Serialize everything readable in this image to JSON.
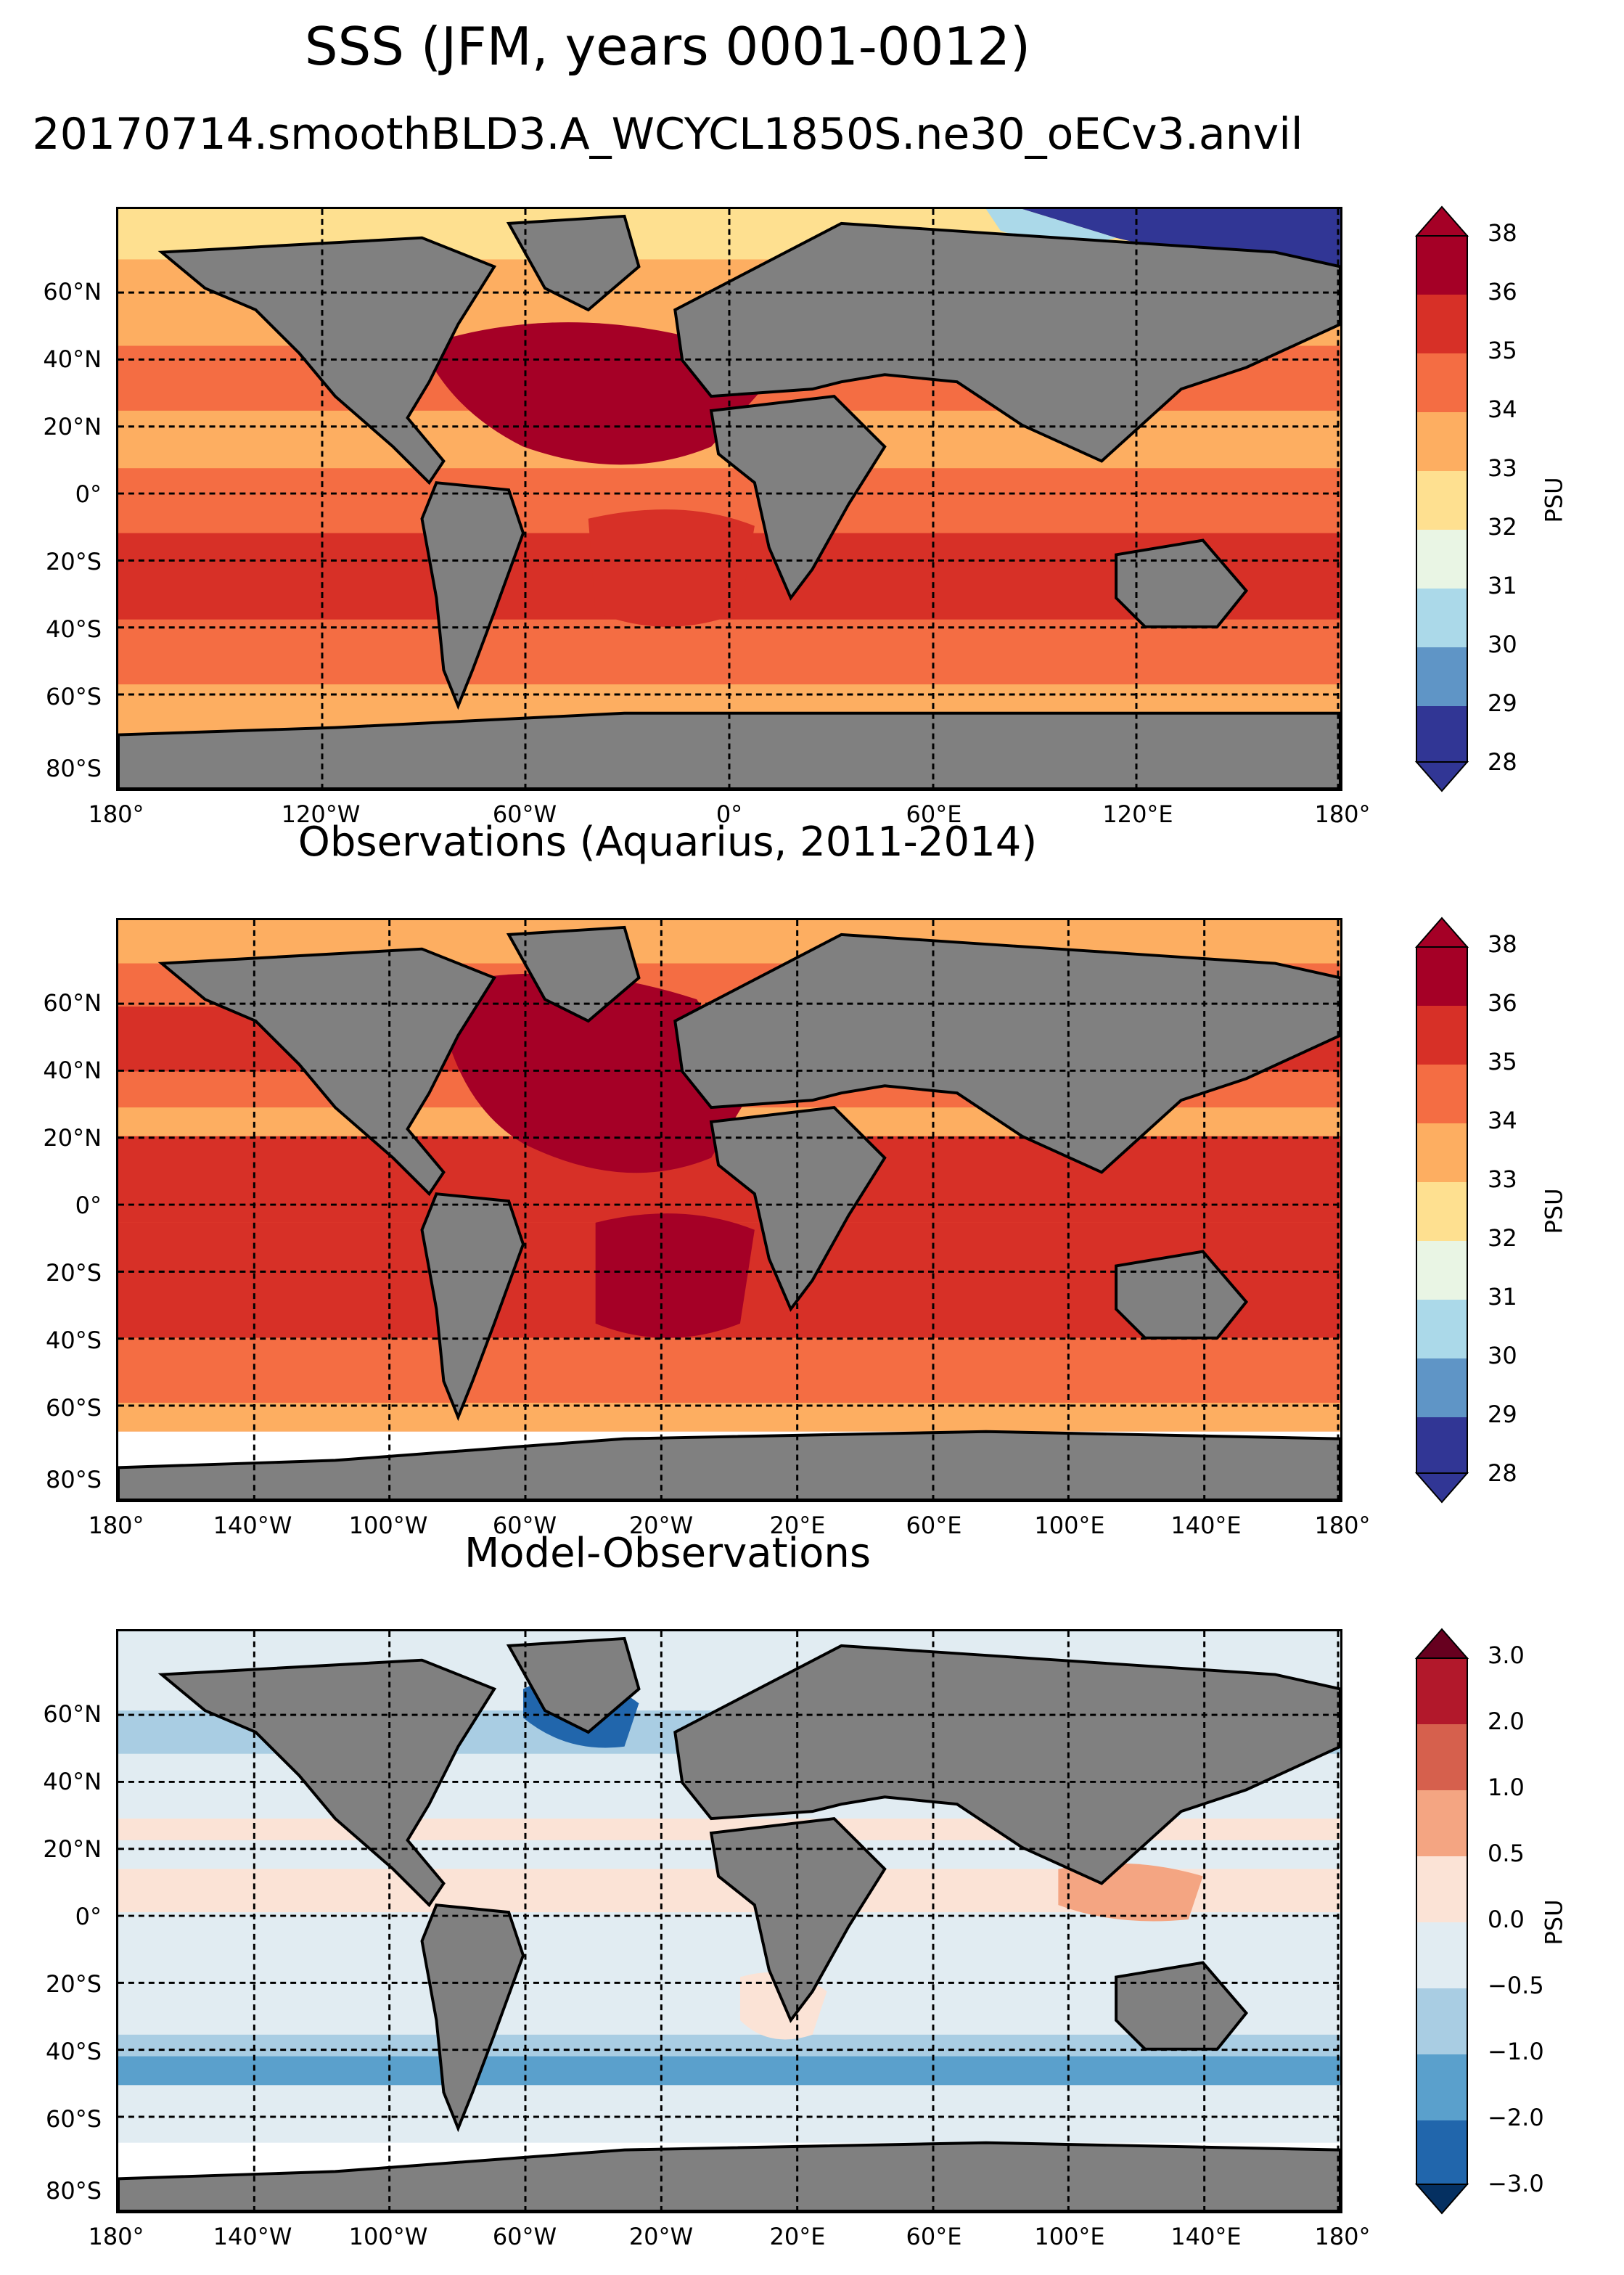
{
  "figure": {
    "title": "SSS (JFM, years 0001-0012)",
    "subtitle": "20170714.smoothBLD3.A_WCYCL1850S.ne30_oECv3.anvil"
  },
  "lat_ticks": [
    "60°N",
    "40°N",
    "20°N",
    "0°",
    "20°S",
    "40°S",
    "60°S",
    "80°S"
  ],
  "panels": [
    {
      "id": "model",
      "title": "",
      "lon_ticks": [
        "180°",
        "120°W",
        "60°W",
        "0°",
        "60°E",
        "120°E",
        "180°"
      ],
      "colorbar": {
        "label": "PSU",
        "ticks": [
          "38",
          "36",
          "35",
          "34",
          "33",
          "32",
          "31",
          "30",
          "29",
          "28"
        ],
        "colors": [
          "#a50026",
          "#d73027",
          "#f46d43",
          "#fdae61",
          "#fee090",
          "#e9f5e4",
          "#abd9e9",
          "#5f95c6",
          "#313695"
        ]
      }
    },
    {
      "id": "obs",
      "title": "Observations (Aquarius, 2011-2014)",
      "lon_ticks": [
        "180°",
        "140°W",
        "100°W",
        "60°W",
        "20°W",
        "20°E",
        "60°E",
        "100°E",
        "140°E",
        "180°"
      ],
      "colorbar": {
        "label": "PSU",
        "ticks": [
          "38",
          "36",
          "35",
          "34",
          "33",
          "32",
          "31",
          "30",
          "29",
          "28"
        ],
        "colors": [
          "#a50026",
          "#d73027",
          "#f46d43",
          "#fdae61",
          "#fee090",
          "#e9f5e4",
          "#abd9e9",
          "#5f95c6",
          "#313695"
        ]
      }
    },
    {
      "id": "diff",
      "title": "Model-Observations",
      "lon_ticks": [
        "180°",
        "140°W",
        "100°W",
        "60°W",
        "20°W",
        "20°E",
        "60°E",
        "100°E",
        "140°E",
        "180°"
      ],
      "colorbar": {
        "label": "PSU",
        "ticks": [
          "3.0",
          "2.0",
          "1.0",
          "0.5",
          "0.0",
          "−0.5",
          "−1.0",
          "−2.0",
          "−3.0"
        ],
        "colors": [
          "#b2182b",
          "#d6604d",
          "#f4a582",
          "#fbe3d6",
          "#e1ecf2",
          "#a9cde3",
          "#5aa0cc",
          "#2166ac"
        ]
      }
    }
  ],
  "colors": {
    "land": "#808080",
    "model_ocean": "#e05a3a",
    "obs_ocean": "#e8553a",
    "diff_ocean": "#e9eef3"
  }
}
